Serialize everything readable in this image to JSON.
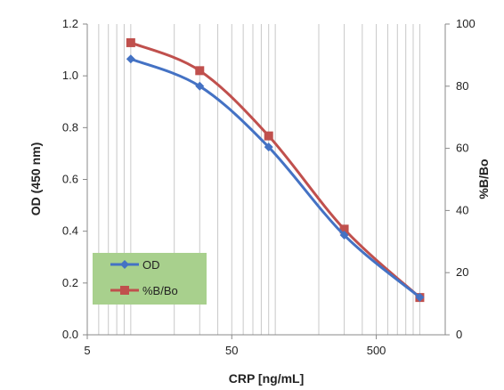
{
  "chart_data": {
    "type": "line",
    "title": "",
    "xlabel": "CRP [ng/mL]",
    "ylabel": "OD (450 nm)",
    "y2label": "%B/Bo",
    "x_scale": "log",
    "xlim": [
      5,
      1500
    ],
    "xticks": [
      5,
      50,
      500
    ],
    "xtick_labels": [
      "5",
      "50",
      "500"
    ],
    "ylim": [
      0,
      1.2
    ],
    "yticks": [
      0.0,
      0.2,
      0.4,
      0.6,
      0.8,
      1.0,
      1.2
    ],
    "ytick_labels": [
      "0.0",
      "0.2",
      "0.4",
      "0.6",
      "0.8",
      "1.0",
      "1.2"
    ],
    "y2lim": [
      0,
      100
    ],
    "y2ticks": [
      0,
      20,
      40,
      60,
      80,
      100
    ],
    "y2tick_labels": [
      "0",
      "20",
      "40",
      "60",
      "80",
      "100"
    ],
    "grid": {
      "vertical_log_minor": true,
      "horizontal": false
    },
    "legend": {
      "position": "bottom-left",
      "background": "#a8d08d"
    },
    "x": [
      10,
      30,
      90,
      300,
      1000
    ],
    "series": [
      {
        "name": "OD",
        "axis": "left",
        "color": "#4472c4",
        "marker": "diamond",
        "values": [
          1.065,
          0.96,
          0.725,
          0.385,
          0.145
        ]
      },
      {
        "name": "%B/Bo",
        "axis": "right",
        "color": "#c0504d",
        "marker": "square",
        "values": [
          94,
          85,
          64,
          34,
          12
        ]
      }
    ]
  }
}
